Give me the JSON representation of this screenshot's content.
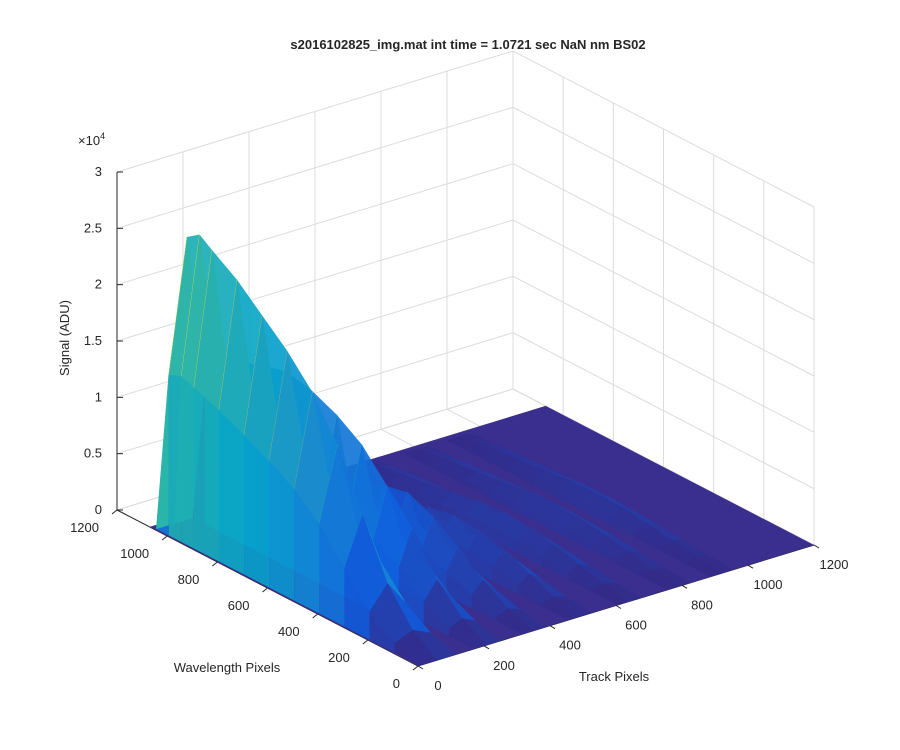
{
  "chart_data": {
    "type": "surface",
    "title": "s2016102825_img.mat int time = 1.0721 sec  NaN nm BS02",
    "xlabel": "Track Pixels",
    "ylabel": "Wavelength Pixels",
    "zlabel": "Signal (ADU)",
    "z_exponent_label": "×10",
    "z_exponent_power": "4",
    "xlim": [
      0,
      1200
    ],
    "ylim": [
      0,
      1200
    ],
    "zlim": [
      0,
      30000
    ],
    "x_ticks": [
      "0",
      "200",
      "400",
      "600",
      "800",
      "1000",
      "1200"
    ],
    "y_ticks": [
      "0",
      "200",
      "400",
      "600",
      "800",
      "1000",
      "1200"
    ],
    "z_ticks": [
      "0",
      "0.5",
      "1",
      "1.5",
      "2",
      "2.5",
      "3"
    ],
    "grid": true,
    "colormap": [
      "#352a87",
      "#0f5cdd",
      "#1481d6",
      "#06a4ca",
      "#2eb7a4",
      "#87bf77",
      "#d1bb59",
      "#fec832",
      "#f9fb0e"
    ],
    "series": [
      {
        "track_center": 60,
        "track_width": 110,
        "wavelength_points": [
          0,
          100,
          200,
          300,
          400,
          500,
          600,
          700,
          800,
          900,
          950,
          1000,
          1050
        ],
        "peak_signal": [
          0,
          1500,
          4500,
          9500,
          14500,
          18000,
          20500,
          22500,
          24500,
          26000,
          26800,
          26000,
          0
        ]
      },
      {
        "track_center": 210,
        "track_width": 80,
        "wavelength_points": [
          0,
          100,
          200,
          300,
          400,
          500,
          600,
          700,
          800,
          900,
          950,
          1000,
          1050
        ],
        "peak_signal": [
          0,
          1200,
          3500,
          7000,
          9500,
          12000,
          13500,
          14500,
          15000,
          14500,
          14000,
          13500,
          0
        ]
      },
      {
        "track_center": 350,
        "track_width": 70,
        "wavelength_points": [
          0,
          100,
          200,
          300,
          400,
          500,
          600,
          700,
          800,
          900,
          950,
          1000,
          1050
        ],
        "peak_signal": [
          0,
          800,
          2200,
          4000,
          5500,
          6500,
          6000,
          5000,
          4000,
          3000,
          2500,
          2000,
          0
        ]
      },
      {
        "track_center": 490,
        "track_width": 70,
        "wavelength_points": [
          0,
          100,
          200,
          300,
          400,
          500,
          600,
          700,
          800,
          900,
          950,
          1000,
          1050
        ],
        "peak_signal": [
          0,
          600,
          1500,
          2500,
          3000,
          3200,
          2800,
          2200,
          1700,
          1300,
          1000,
          800,
          0
        ]
      },
      {
        "track_center": 640,
        "track_width": 70,
        "wavelength_points": [
          0,
          100,
          200,
          300,
          400,
          500,
          600,
          700,
          800,
          900,
          950,
          1000,
          1050
        ],
        "peak_signal": [
          0,
          400,
          1000,
          1600,
          2000,
          2200,
          2000,
          1600,
          1200,
          900,
          700,
          500,
          0
        ]
      },
      {
        "track_center": 790,
        "track_width": 70,
        "wavelength_points": [
          0,
          100,
          200,
          300,
          400,
          500,
          600,
          700,
          800,
          900,
          950,
          1000,
          1050
        ],
        "peak_signal": [
          0,
          300,
          800,
          1200,
          1500,
          1600,
          1500,
          1200,
          900,
          700,
          500,
          400,
          0
        ]
      },
      {
        "track_center": 920,
        "track_width": 70,
        "wavelength_points": [
          0,
          100,
          200,
          300,
          400,
          500,
          600,
          700,
          800,
          900,
          950,
          1000,
          1050
        ],
        "peak_signal": [
          0,
          200,
          600,
          1000,
          1300,
          1400,
          1300,
          1000,
          800,
          600,
          400,
          300,
          0
        ]
      }
    ]
  }
}
